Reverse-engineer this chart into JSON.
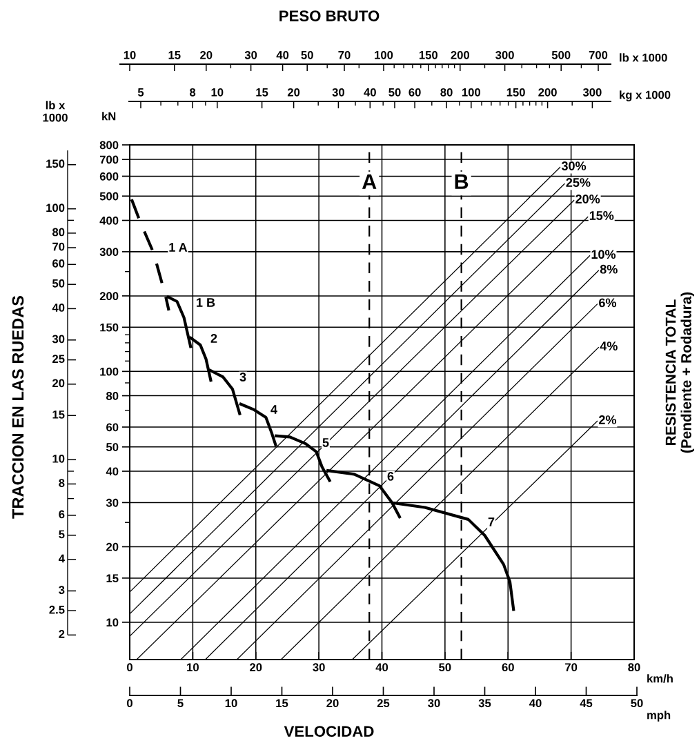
{
  "chart_data": [
    {
      "type": "other",
      "xlabel": "lb x 1000",
      "annotations": [
        "10",
        "15",
        "20",
        "30",
        "40",
        "50",
        "70",
        "100",
        "150",
        "200",
        "300",
        "500",
        "700"
      ]
    },
    {
      "type": "other",
      "xlabel": "kg x 1000",
      "annotations": [
        "5",
        "8",
        "10",
        "15",
        "20",
        "30",
        "40",
        "50",
        "60",
        "80",
        "100",
        "150",
        "200",
        "300"
      ]
    },
    {
      "type": "other",
      "ylabel": "lb x\n1000",
      "annotations": [
        "150",
        "100",
        "80",
        "70",
        "60",
        "50",
        "40",
        "30",
        "25",
        "20",
        "15",
        "10",
        "8",
        "6",
        "5",
        "4",
        "3",
        "2.5",
        "2"
      ]
    },
    {
      "type": "line",
      "title": "PESO BRUTO",
      "xlabel": "km/h",
      "ylabel": "kN",
      "x2label": "mph",
      "xlim": [
        0,
        80
      ],
      "xticks": [
        0,
        10,
        20,
        30,
        40,
        50,
        60,
        70,
        80
      ],
      "ylim": [
        7.1,
        800
      ],
      "yticks": [
        800,
        700,
        600,
        500,
        400,
        300,
        {
          "value": 250,
          "label": null
        },
        200,
        150,
        {
          "value": 140,
          "label": null
        },
        {
          "value": 130,
          "label": null
        },
        {
          "value": 120,
          "label": null
        },
        {
          "value": 110,
          "label": null
        },
        100,
        {
          "value": 90,
          "label": null
        },
        80,
        {
          "value": 70,
          "label": null
        },
        60,
        50,
        40,
        30,
        {
          "value": 25,
          "label": null
        },
        20,
        15,
        10
      ],
      "x2lim": [
        0,
        50
      ],
      "x2ticks": [
        0,
        5,
        10,
        15,
        20,
        25,
        30,
        35,
        40,
        45,
        50
      ],
      "log": "y",
      "grid": true,
      "series": [
        {
          "color": "#000000",
          "line_style": "dashed",
          "x": [
            0.3,
            1.6,
            3.8,
            5.7,
            6.2
          ],
          "values": [
            485,
            398,
            296,
            199,
            175
          ]
        },
        {
          "color": "#000000",
          "line_style": "solid",
          "x": [
            5.9,
            7.5,
            8.6,
            9.7
          ],
          "values": [
            199,
            190,
            164,
            124
          ]
        },
        {
          "color": "#000000",
          "line_style": "solid",
          "x": [
            9.5,
            11.2,
            12.1,
            12.9
          ],
          "values": [
            137,
            127.5,
            112,
            91
          ]
        },
        {
          "color": "#000000",
          "line_style": "solid",
          "x": [
            12.6,
            14.8,
            16.3,
            17.5
          ],
          "values": [
            101.5,
            95,
            85,
            67
          ]
        },
        {
          "color": "#000000",
          "line_style": "solid",
          "x": [
            17.4,
            19.6,
            21.6,
            22.5,
            23.2
          ],
          "values": [
            74.4,
            70.6,
            65.6,
            57,
            50.4
          ]
        },
        {
          "color": "#000000",
          "line_style": "solid",
          "x": [
            23.0,
            25.4,
            27.9,
            29.6,
            30.5,
            31.8
          ],
          "values": [
            55.4,
            54.8,
            51.5,
            47.8,
            41.6,
            36.3
          ]
        },
        {
          "color": "#000000",
          "line_style": "solid",
          "x": [
            31.2,
            35.6,
            39.6,
            41.6,
            42.9
          ],
          "values": [
            40.3,
            38.9,
            35.0,
            30.0,
            26.0
          ]
        },
        {
          "color": "#000000",
          "line_style": "solid",
          "x": [
            41.8,
            46.8,
            53.7,
            56.3,
            59.3,
            60.3,
            60.9
          ],
          "values": [
            29.9,
            28.7,
            25.7,
            22.2,
            17.0,
            14.5,
            11.1
          ]
        },
        {
          "name": "30%",
          "color": "#000000",
          "line_style": "solid",
          "x": [
            0,
            68.3
          ],
          "values": [
            13.2,
            653
          ]
        },
        {
          "name": "25%",
          "color": "#000000",
          "line_style": "solid",
          "x": [
            0,
            69.0
          ],
          "values": [
            10.8,
            561
          ]
        },
        {
          "name": "20%",
          "color": "#000000",
          "line_style": "solid",
          "x": [
            0,
            70.5
          ],
          "values": [
            8.8,
            482
          ]
        },
        {
          "name": "15%",
          "color": "#000000",
          "line_style": "solid",
          "x": [
            1.1,
            72.7
          ],
          "values": [
            7.1,
            414
          ]
        },
        {
          "name": "10%",
          "color": "#000000",
          "line_style": "solid",
          "x": [
            8.1,
            73.0
          ],
          "values": [
            7.1,
            290
          ]
        },
        {
          "name": "8%",
          "color": "#000000",
          "line_style": "solid",
          "x": [
            12.0,
            74.4
          ],
          "values": [
            7.1,
            253
          ]
        },
        {
          "name": "6%",
          "color": "#000000",
          "line_style": "solid",
          "x": [
            17.0,
            74.2
          ],
          "values": [
            7.1,
            186
          ]
        },
        {
          "name": "4%",
          "color": "#000000",
          "line_style": "solid",
          "x": [
            24.0,
            74.4
          ],
          "values": [
            7.1,
            125
          ]
        },
        {
          "name": "2%",
          "color": "#000000",
          "line_style": "solid",
          "x": [
            35.3,
            74.2
          ],
          "values": [
            7.1,
            63.5
          ]
        }
      ],
      "ref_lines": [
        {
          "axis": "x",
          "value": 38.0,
          "label": "A",
          "color": "#000000",
          "line_style": "dashed"
        },
        {
          "axis": "x",
          "value": 52.6,
          "label": "B",
          "color": "#000000",
          "line_style": "dashed"
        }
      ],
      "annotations": [
        "TRACCION EN LAS RUEDAS",
        "RESISTENCIA TOTAL\n(Pendiente + Rodadura)",
        "VELOCIDAD",
        "1 A",
        "1 B",
        "2",
        "3",
        "4",
        "5",
        "6",
        "7"
      ]
    }
  ]
}
